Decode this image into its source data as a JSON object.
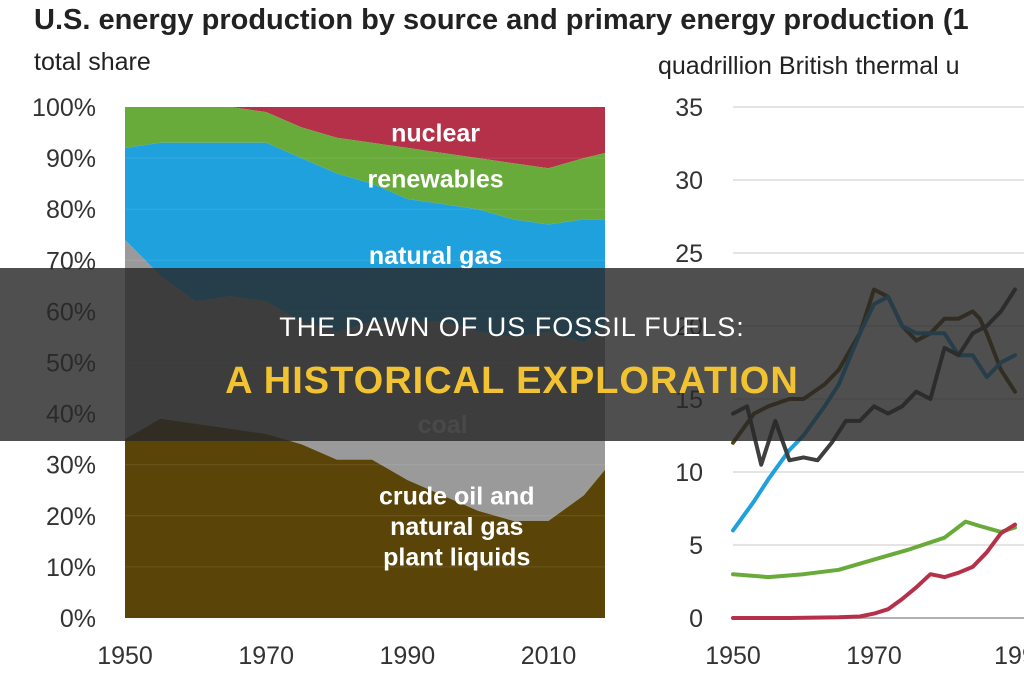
{
  "title": "U.S. energy production by source and primary energy production (1",
  "colors": {
    "crude_oil": "#5a4407",
    "coal": "#9a9a9a",
    "coal_dark": "#3f3f3f",
    "natural_gas": "#1ea1dc",
    "renewables": "#69ab3a",
    "nuclear": "#b5314a",
    "banner_bg": "#282828",
    "banner_highlight": "#f1c232"
  },
  "banner": {
    "line1": "THE DAWN OF US FOSSIL FUELS:",
    "line2": "A HISTORICAL EXPLORATION"
  },
  "chart_data": [
    {
      "type": "area",
      "subtitle": "total share",
      "stacked": true,
      "x_ticks": [
        "1950",
        "1970",
        "1990",
        "2010"
      ],
      "y_ticks": [
        "0%",
        "10%",
        "20%",
        "30%",
        "40%",
        "50%",
        "60%",
        "70%",
        "80%",
        "90%",
        "100%"
      ],
      "ylim": [
        0,
        100
      ],
      "x": [
        1950,
        1955,
        1960,
        1965,
        1970,
        1975,
        1980,
        1985,
        1990,
        1995,
        2000,
        2005,
        2010,
        2015,
        2018
      ],
      "series": [
        {
          "name": "crude oil and natural gas plant liquids",
          "colorKey": "crude_oil",
          "cumulative": [
            35,
            39,
            38,
            37,
            36,
            34,
            31,
            31,
            27,
            24,
            21,
            19,
            19,
            24,
            29
          ]
        },
        {
          "name": "coal",
          "colorKey": "coal",
          "cumulative": [
            74,
            67,
            62,
            63,
            62,
            58,
            56,
            58,
            58,
            58,
            56,
            55,
            56,
            54,
            57
          ]
        },
        {
          "name": "natural gas",
          "colorKey": "natural_gas",
          "cumulative": [
            92,
            93,
            93,
            93,
            93,
            90,
            87,
            85,
            82,
            81,
            80,
            78,
            77,
            78,
            78
          ]
        },
        {
          "name": "renewables",
          "colorKey": "renewables",
          "cumulative": [
            100,
            100,
            100,
            100,
            99,
            96,
            94,
            93,
            92,
            91,
            90,
            89,
            88,
            90,
            91
          ]
        },
        {
          "name": "nuclear",
          "colorKey": "nuclear",
          "cumulative": [
            100,
            100,
            100,
            100,
            100,
            100,
            100,
            100,
            100,
            100,
            100,
            100,
            100,
            100,
            100
          ]
        }
      ],
      "labels": [
        {
          "text": "nuclear",
          "x": 1994,
          "y": 95,
          "color": "#ffffff"
        },
        {
          "text": "renewables",
          "x": 1994,
          "y": 86,
          "color": "#ffffff"
        },
        {
          "text": "natural gas",
          "x": 1994,
          "y": 71,
          "color": "#ffffff"
        },
        {
          "text": "coal",
          "x": 1995,
          "y": 38,
          "color": "#dddddd"
        },
        {
          "text": "crude oil and",
          "x": 1997,
          "y": 24,
          "color": "#ffffff"
        },
        {
          "text": "natural gas",
          "x": 1997,
          "y": 18,
          "color": "#ffffff"
        },
        {
          "text": "plant liquids",
          "x": 1997,
          "y": 12,
          "color": "#ffffff"
        }
      ]
    },
    {
      "type": "line",
      "subtitle": "quadrillion British thermal u",
      "x_ticks": [
        "1950",
        "1970",
        "199"
      ],
      "y_ticks": [
        "0",
        "5",
        "10",
        "15",
        "20",
        "25",
        "30",
        "35"
      ],
      "ylim": [
        0,
        35
      ],
      "xlim": [
        1950,
        1990
      ],
      "series": [
        {
          "key": "crude_oil",
          "colorKey": "crude_oil",
          "x": [
            1950,
            1953,
            1955,
            1958,
            1960,
            1963,
            1965,
            1968,
            1970,
            1972,
            1974,
            1976,
            1978,
            1980,
            1982,
            1984,
            1985,
            1986,
            1988,
            1990
          ],
          "y": [
            12,
            14,
            14.5,
            15,
            15,
            16,
            17,
            19.5,
            22.5,
            22,
            20,
            19,
            19.5,
            20.5,
            20.5,
            21,
            20.5,
            19.5,
            17,
            15.5
          ]
        },
        {
          "key": "natural_gas",
          "colorKey": "natural_gas",
          "x": [
            1950,
            1953,
            1955,
            1958,
            1960,
            1963,
            1965,
            1968,
            1970,
            1972,
            1974,
            1976,
            1978,
            1980,
            1982,
            1984,
            1986,
            1988,
            1990
          ],
          "y": [
            6,
            8,
            9.5,
            11.5,
            12.5,
            14.5,
            16,
            19.5,
            21.5,
            22,
            20,
            19.5,
            19.5,
            19.5,
            18,
            18,
            16.5,
            17.5,
            18
          ]
        },
        {
          "key": "coal",
          "colorKey": "coal_dark",
          "x": [
            1950,
            1952,
            1954,
            1956,
            1958,
            1960,
            1962,
            1964,
            1966,
            1968,
            1970,
            1972,
            1974,
            1976,
            1978,
            1980,
            1982,
            1984,
            1986,
            1988,
            1990
          ],
          "y": [
            14,
            14.5,
            10.5,
            13.5,
            10.8,
            11,
            10.8,
            12,
            13.5,
            13.5,
            14.5,
            14,
            14.5,
            15.5,
            15,
            18.5,
            18,
            19.5,
            20,
            21,
            22.5
          ]
        },
        {
          "key": "renewables",
          "colorKey": "renewables",
          "x": [
            1950,
            1955,
            1960,
            1965,
            1970,
            1975,
            1980,
            1983,
            1985,
            1988,
            1990
          ],
          "y": [
            3,
            2.8,
            3,
            3.3,
            4,
            4.7,
            5.5,
            6.6,
            6.3,
            5.9,
            6.2
          ]
        },
        {
          "key": "nuclear",
          "colorKey": "nuclear",
          "x": [
            1950,
            1958,
            1965,
            1968,
            1970,
            1972,
            1974,
            1976,
            1978,
            1980,
            1982,
            1984,
            1986,
            1988,
            1990
          ],
          "y": [
            0,
            0,
            0.05,
            0.1,
            0.3,
            0.6,
            1.3,
            2.1,
            3,
            2.8,
            3.1,
            3.5,
            4.5,
            5.8,
            6.4
          ]
        }
      ]
    }
  ]
}
